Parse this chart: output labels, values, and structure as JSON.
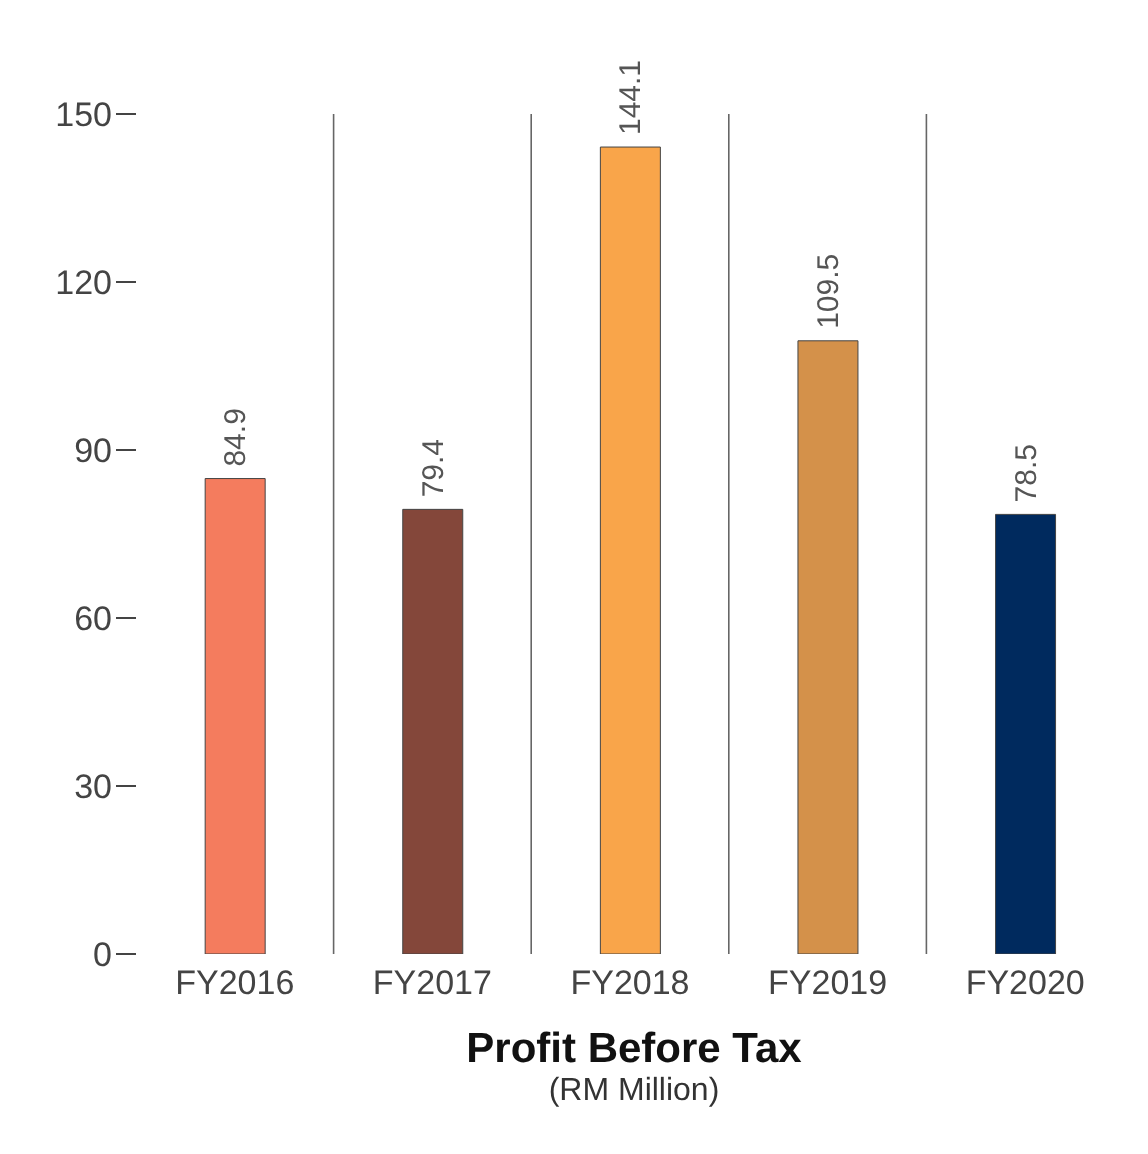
{
  "chart_data": {
    "type": "bar",
    "title": "Profit Before Tax",
    "subtitle": "(RM Million)",
    "categories": [
      "FY2016",
      "FY2017",
      "FY2018",
      "FY2019",
      "FY2020"
    ],
    "values": [
      84.9,
      79.4,
      144.1,
      109.5,
      78.5
    ],
    "colors": [
      "#f47c5e",
      "#84473a",
      "#f9a54a",
      "#d4914a",
      "#002a5e"
    ],
    "ylim": [
      0,
      150
    ],
    "yticks": [
      0,
      30,
      60,
      90,
      120,
      150
    ],
    "grid": "x",
    "data_labels": true
  }
}
